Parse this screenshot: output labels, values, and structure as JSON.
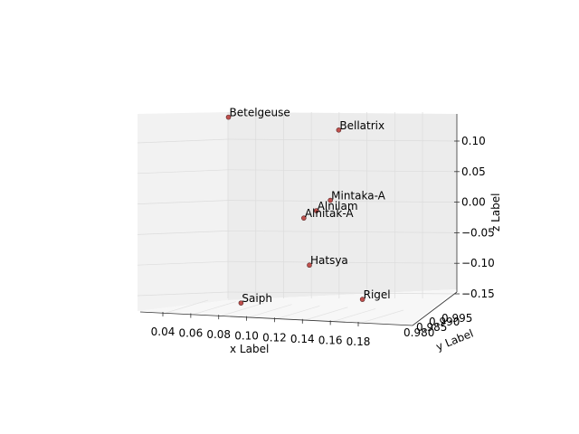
{
  "chart_data": {
    "type": "scatter3d",
    "title": "",
    "xlabel": "x Label",
    "ylabel": "y Label",
    "zlabel": "z Label",
    "xlim": [
      0.02,
      0.19
    ],
    "zlim": [
      -0.17,
      0.14
    ],
    "x_ticks": [
      "0.04",
      "0.06",
      "0.08",
      "0.10",
      "0.12",
      "0.14",
      "0.16",
      "0.18"
    ],
    "x_tick_values": [
      0.04,
      0.06,
      0.08,
      0.1,
      0.12,
      0.14,
      0.16,
      0.18
    ],
    "y_ticks": [
      "0.980",
      "0.985",
      "0.990",
      "0.995"
    ],
    "z_ticks": [
      "0.10",
      "0.05",
      "0.00",
      "−0.05",
      "−0.10",
      "−0.15"
    ],
    "z_tick_values": [
      0.1,
      0.05,
      0.0,
      -0.05,
      -0.1,
      -0.15
    ],
    "grid": true,
    "marker_color": "#c0504d",
    "points": [
      {
        "name": "Betelgeuse",
        "x": 0.087,
        "z": 0.139
      },
      {
        "name": "Bellatrix",
        "x": 0.166,
        "z": 0.118
      },
      {
        "name": "Mintaka-A",
        "x": 0.16,
        "z": 0.003
      },
      {
        "name": "Alnilam",
        "x": 0.15,
        "z": -0.014
      },
      {
        "name": "Alnitak-A",
        "x": 0.141,
        "z": -0.026
      },
      {
        "name": "Hatsya",
        "x": 0.145,
        "z": -0.103
      },
      {
        "name": "Saiph",
        "x": 0.096,
        "z": -0.165
      },
      {
        "name": "Rigel",
        "x": 0.183,
        "z": -0.159
      }
    ]
  }
}
